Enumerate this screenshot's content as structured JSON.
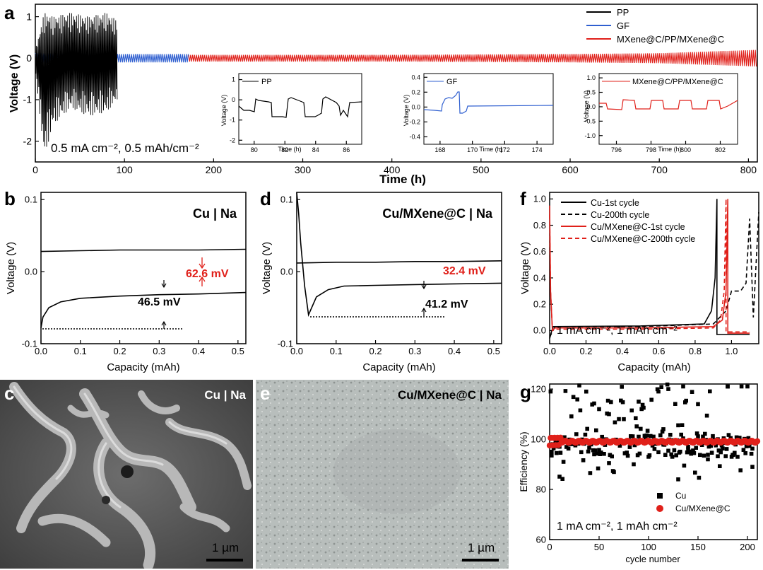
{
  "colors": {
    "pp": "#000000",
    "gf": "#2f5fd0",
    "mx": "#e0201a",
    "ann_red": "#e0201a"
  },
  "panel_a": {
    "letter": "a",
    "xlabel": "Time (h)",
    "ylabel": "Voltage (V)",
    "annotation": "0.5 mA cm⁻², 0.5 mAh/cm⁻²",
    "legend": [
      "PP",
      "GF",
      "MXene@C/PP/MXene@C"
    ],
    "x_ticks": [
      "0",
      "100",
      "200",
      "300",
      "400",
      "500",
      "600",
      "700",
      "800"
    ],
    "y_ticks": [
      "-2",
      "-1",
      "0",
      "1"
    ],
    "insets": [
      {
        "title": "PP",
        "xlabel": "Time (h)",
        "ylabel": "Voltage (V)",
        "x_ticks": [
          "80",
          "82",
          "84",
          "86"
        ],
        "y_ticks": [
          "-2",
          "-1",
          "0",
          "1"
        ]
      },
      {
        "title": "GF",
        "xlabel": "Time (h)",
        "ylabel": "Voltage (V)",
        "x_ticks": [
          "168",
          "170",
          "172",
          "174"
        ],
        "y_ticks": [
          "-0.4",
          "-0.2",
          "0.0",
          "0.2",
          "0.4"
        ]
      },
      {
        "title": "MXene@C/PP/MXene@C",
        "xlabel": "Time (h)",
        "ylabel": "Voltage (V)",
        "x_ticks": [
          "796",
          "798",
          "800",
          "802"
        ],
        "y_ticks": [
          "-1.0",
          "-0.5",
          "0.0",
          "0.5",
          "1.0"
        ]
      }
    ]
  },
  "panel_b": {
    "letter": "b",
    "title": "Cu | Na",
    "xlabel": "Capacity (mAh)",
    "ylabel": "Voltage (V)",
    "x_ticks": [
      "0.0",
      "0.1",
      "0.2",
      "0.3",
      "0.4",
      "0.5"
    ],
    "y_ticks": [
      "-0.1",
      "0.0",
      "0.1"
    ],
    "ann_red": "62.6 mV",
    "ann_black": "46.5 mV"
  },
  "panel_d": {
    "letter": "d",
    "title": "Cu/MXene@C | Na",
    "xlabel": "Capacity (mAh)",
    "ylabel": "Voltage (V)",
    "x_ticks": [
      "0.0",
      "0.1",
      "0.2",
      "0.3",
      "0.4",
      "0.5"
    ],
    "y_ticks": [
      "-0.1",
      "0.0",
      "0.1"
    ],
    "ann_red": "32.4 mV",
    "ann_black": "41.2 mV"
  },
  "panel_f": {
    "letter": "f",
    "xlabel": "Capacity (mAh)",
    "ylabel": "Voltage (V)",
    "annotation": "1 mA cm⁻², 1 mAh cm⁻²",
    "legend": [
      "Cu-1st cycle",
      "Cu-200th cycle",
      "Cu/MXene@C-1st cycle",
      "Cu/MXene@C-200th cycle"
    ],
    "x_ticks": [
      "0.0",
      "0.2",
      "0.4",
      "0.6",
      "0.8",
      "1.0"
    ],
    "y_ticks": [
      "0.0",
      "0.2",
      "0.4",
      "0.6",
      "0.8",
      "1.0"
    ]
  },
  "panel_g": {
    "letter": "g",
    "xlabel": "cycle number",
    "ylabel": "Efficiency (%)",
    "annotation": "1 mA cm⁻², 1 mAh cm⁻²",
    "legend": [
      "Cu",
      "Cu/MXene@C"
    ],
    "x_ticks": [
      "0",
      "50",
      "100",
      "150",
      "200"
    ],
    "y_ticks": [
      "60",
      "80",
      "100",
      "120"
    ]
  },
  "panel_c": {
    "letter": "c",
    "label": "Cu | Na",
    "scalebar": "1 µm"
  },
  "panel_e": {
    "letter": "e",
    "label": "Cu/MXene@C | Na",
    "scalebar": "1 µm"
  },
  "chart_data": [
    {
      "panel": "a",
      "type": "line",
      "xlim": [
        0,
        810
      ],
      "ylim": [
        -2.5,
        1.3
      ],
      "series": [
        {
          "name": "PP",
          "x": [
            0,
            10,
            20,
            40,
            60,
            80,
            92
          ],
          "y_min": [
            -0.3,
            -2.4,
            -1.6,
            -1.2,
            -1.4,
            -1.3,
            -1.0
          ],
          "y_max": [
            0.2,
            1.1,
            1.0,
            1.1,
            1.0,
            1.1,
            0.9
          ]
        },
        {
          "name": "GF",
          "x": [
            0,
            92,
            172
          ],
          "y_min": [
            -0.12,
            -0.1,
            -0.1
          ],
          "y_max": [
            0.12,
            0.1,
            0.1
          ]
        },
        {
          "name": "MXene@C/PP/MXene@C",
          "x": [
            172,
            400,
            600,
            700,
            810
          ],
          "y_min": [
            -0.08,
            -0.08,
            -0.1,
            -0.12,
            -0.2
          ],
          "y_max": [
            0.08,
            0.08,
            0.1,
            0.12,
            0.2
          ]
        }
      ]
    },
    {
      "panel": "b",
      "type": "line",
      "xlim": [
        0,
        0.52
      ],
      "ylim": [
        -0.1,
        0.11
      ],
      "series": [
        {
          "x": [
            0,
            0.1,
            0.2,
            0.3,
            0.4,
            0.52
          ],
          "y": [
            0.028,
            0.029,
            0.03,
            0.03,
            0.03,
            0.031
          ]
        },
        {
          "x": [
            0,
            0.005,
            0.02,
            0.05,
            0.1,
            0.2,
            0.3,
            0.4,
            0.52
          ],
          "y": [
            -0.078,
            -0.063,
            -0.05,
            -0.042,
            -0.037,
            -0.034,
            -0.032,
            -0.031,
            -0.029
          ]
        }
      ]
    },
    {
      "panel": "d",
      "type": "line",
      "xlim": [
        0,
        0.52
      ],
      "ylim": [
        -0.1,
        0.11
      ],
      "series": [
        {
          "x": [
            0,
            0.1,
            0.2,
            0.3,
            0.4,
            0.52
          ],
          "y": [
            0.012,
            0.013,
            0.013,
            0.014,
            0.014,
            0.015
          ]
        },
        {
          "x": [
            0.0,
            0.005,
            0.01,
            0.02,
            0.03,
            0.05,
            0.08,
            0.12,
            0.2,
            0.3,
            0.4,
            0.52
          ],
          "y": [
            0.11,
            0.08,
            0.04,
            -0.02,
            -0.06,
            -0.035,
            -0.025,
            -0.02,
            -0.019,
            -0.018,
            -0.017,
            -0.016
          ]
        }
      ]
    },
    {
      "panel": "f",
      "type": "line",
      "xlim": [
        0,
        1.15
      ],
      "ylim": [
        -0.1,
        1.05
      ],
      "series": [
        {
          "name": "Cu-1st cycle",
          "x": [
            0.0,
            0.01,
            0.02,
            0.5,
            0.85,
            0.89,
            0.91,
            0.92,
            0.92,
            1.1
          ],
          "y": [
            -0.06,
            -0.01,
            0.03,
            0.035,
            0.05,
            0.15,
            0.4,
            1.0,
            -0.03,
            -0.03
          ]
        },
        {
          "name": "Cu-200th cycle",
          "x": [
            0.0,
            0.03,
            0.5,
            0.9,
            0.97,
            1.0,
            1.05,
            1.08,
            1.1,
            1.12,
            1.15
          ],
          "y": [
            -0.05,
            0.03,
            0.03,
            0.05,
            0.15,
            0.3,
            0.3,
            0.36,
            0.85,
            0.1,
            0.9
          ]
        },
        {
          "name": "Cu/MXene@C-1st cycle",
          "x": [
            0.0,
            0.005,
            0.015,
            0.03,
            0.5,
            0.9,
            0.95,
            0.97,
            0.98,
            0.98,
            1.1
          ],
          "y": [
            0.95,
            0.3,
            0.0,
            0.02,
            0.02,
            0.03,
            0.08,
            0.3,
            1.0,
            -0.02,
            -0.02
          ]
        },
        {
          "name": "Cu/MXene@C-200th cycle",
          "x": [
            0.0,
            0.005,
            0.015,
            0.03,
            0.5,
            0.9,
            0.94,
            0.96,
            0.97,
            0.97,
            1.1
          ],
          "y": [
            0.88,
            0.3,
            0.0,
            0.01,
            0.01,
            0.02,
            0.08,
            0.3,
            1.0,
            -0.01,
            -0.01
          ]
        }
      ]
    },
    {
      "panel": "g",
      "type": "scatter",
      "xlim": [
        0,
        210
      ],
      "ylim": [
        60,
        122
      ],
      "series": [
        {
          "name": "Cu",
          "x": [
            2,
            10,
            25,
            45,
            50,
            60,
            75,
            85,
            90,
            100,
            110,
            115,
            120,
            130,
            135,
            140,
            150,
            160,
            170,
            180,
            190,
            200,
            205
          ],
          "y": [
            95,
            97,
            98,
            94,
            112,
            110,
            108,
            90,
            101,
            93,
            119,
            104,
            120,
            84,
            121,
            96,
            114,
            92,
            100,
            121,
            93,
            121,
            89
          ],
          "range_low": 84,
          "range_high": 122
        },
        {
          "name": "Cu/MXene@C",
          "x": [
            0,
            5,
            8,
            10,
            20,
            50,
            100,
            150,
            200,
            210
          ],
          "y": [
            97,
            98,
            101,
            99,
            99,
            99,
            99,
            99,
            99,
            99
          ]
        }
      ]
    }
  ]
}
